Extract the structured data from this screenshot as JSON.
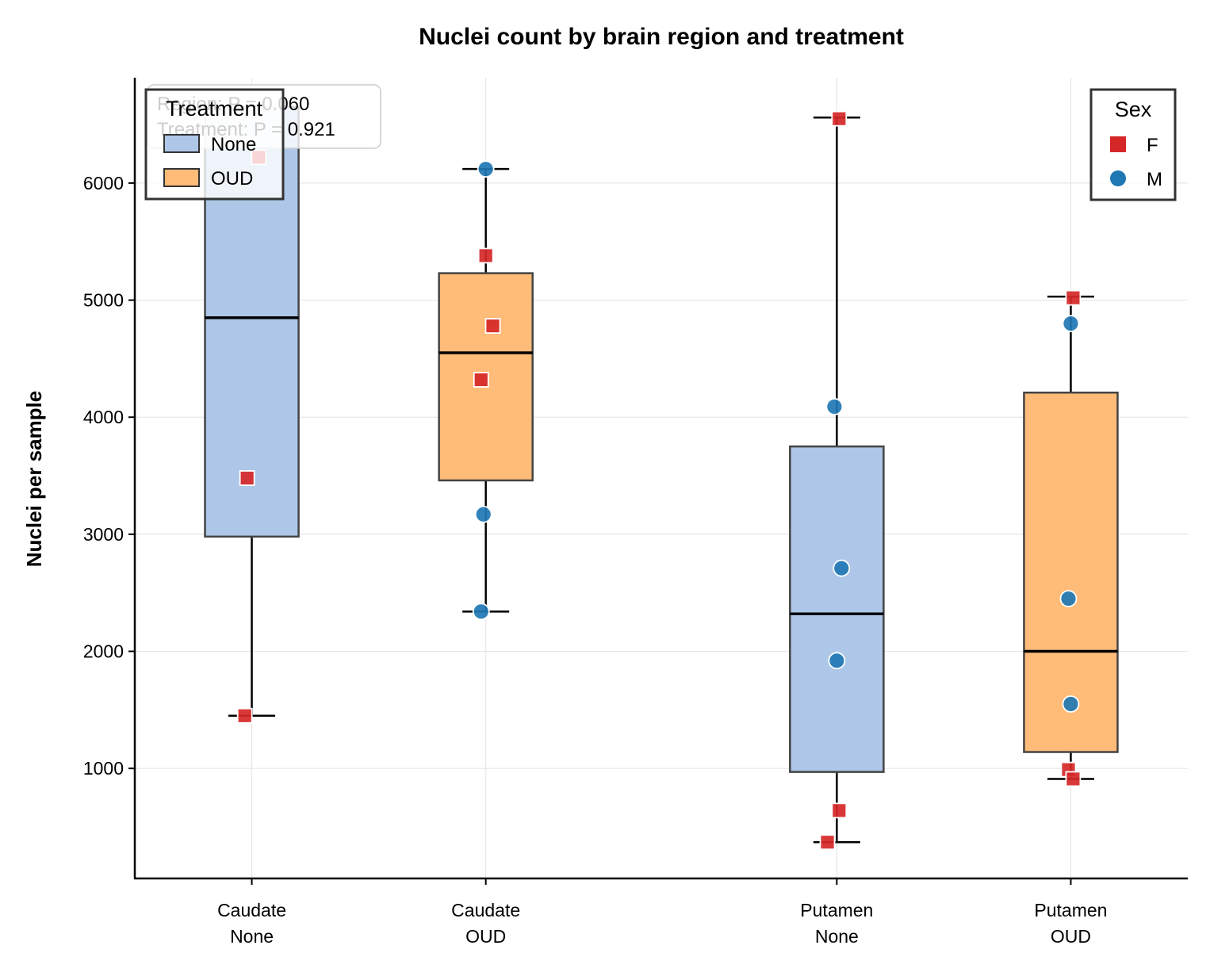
{
  "chart_data": {
    "type": "box",
    "title": "Nuclei count by brain region and treatment",
    "ylabel": "Nuclei per sample",
    "xlabel": "",
    "ylim": [
      60,
      6900
    ],
    "yticks": [
      1000,
      2000,
      3000,
      4000,
      5000,
      6000
    ],
    "grid": true,
    "categories": [
      {
        "label_line1": "Caudate",
        "label_line2": "None",
        "region": "Caudate",
        "treatment": "None",
        "x": 1.0
      },
      {
        "label_line1": "Caudate",
        "label_line2": "OUD",
        "region": "Caudate",
        "treatment": "OUD",
        "x": 2.0
      },
      {
        "label_line1": "Putamen",
        "label_line2": "None",
        "region": "Putamen",
        "treatment": "None",
        "x": 3.5
      },
      {
        "label_line1": "Putamen",
        "label_line2": "OUD",
        "region": "Putamen",
        "treatment": "OUD",
        "x": 4.5
      }
    ],
    "xlim": [
      0.5,
      5.0
    ],
    "boxes": [
      {
        "category": "Caudate None",
        "treatment": "None",
        "whisker_low": 1450,
        "q1": 2980,
        "median": 4850,
        "q3": 6650,
        "whisker_high": 6650
      },
      {
        "category": "Caudate OUD",
        "treatment": "OUD",
        "whisker_low": 2340,
        "q1": 3460,
        "median": 4550,
        "q3": 5230,
        "whisker_high": 6120
      },
      {
        "category": "Putamen None",
        "treatment": "None",
        "whisker_low": 370,
        "q1": 970,
        "median": 2320,
        "q3": 3750,
        "whisker_high": 6560
      },
      {
        "category": "Putamen OUD",
        "treatment": "OUD",
        "whisker_low": 910,
        "q1": 1140,
        "median": 2000,
        "q3": 4210,
        "whisker_high": 5030
      }
    ],
    "points": [
      {
        "category": "Caudate None",
        "x": 1.03,
        "y": 6220,
        "sex": "F"
      },
      {
        "category": "Caudate None",
        "x": 0.98,
        "y": 3480,
        "sex": "F"
      },
      {
        "category": "Caudate None",
        "x": 0.97,
        "y": 1450,
        "sex": "F"
      },
      {
        "category": "Caudate OUD",
        "x": 2.0,
        "y": 6120,
        "sex": "M"
      },
      {
        "category": "Caudate OUD",
        "x": 2.0,
        "y": 5380,
        "sex": "F"
      },
      {
        "category": "Caudate OUD",
        "x": 2.03,
        "y": 4780,
        "sex": "F"
      },
      {
        "category": "Caudate OUD",
        "x": 1.98,
        "y": 4320,
        "sex": "F"
      },
      {
        "category": "Caudate OUD",
        "x": 1.99,
        "y": 3170,
        "sex": "M"
      },
      {
        "category": "Caudate OUD",
        "x": 1.98,
        "y": 2340,
        "sex": "M"
      },
      {
        "category": "Putamen None",
        "x": 3.51,
        "y": 6550,
        "sex": "F"
      },
      {
        "category": "Putamen None",
        "x": 3.49,
        "y": 4090,
        "sex": "M"
      },
      {
        "category": "Putamen None",
        "x": 3.52,
        "y": 2710,
        "sex": "M"
      },
      {
        "category": "Putamen None",
        "x": 3.5,
        "y": 1920,
        "sex": "M"
      },
      {
        "category": "Putamen None",
        "x": 3.51,
        "y": 640,
        "sex": "F"
      },
      {
        "category": "Putamen None",
        "x": 3.46,
        "y": 370,
        "sex": "F"
      },
      {
        "category": "Putamen OUD",
        "x": 4.51,
        "y": 5020,
        "sex": "F"
      },
      {
        "category": "Putamen OUD",
        "x": 4.5,
        "y": 4800,
        "sex": "M"
      },
      {
        "category": "Putamen OUD",
        "x": 4.49,
        "y": 2450,
        "sex": "M"
      },
      {
        "category": "Putamen OUD",
        "x": 4.5,
        "y": 1550,
        "sex": "M"
      },
      {
        "category": "Putamen OUD",
        "x": 4.49,
        "y": 990,
        "sex": "F"
      },
      {
        "category": "Putamen OUD",
        "x": 4.51,
        "y": 910,
        "sex": "F"
      }
    ],
    "colors": {
      "None": "#aec7e8",
      "OUD": "#ffbb78",
      "F": "#d62728",
      "M": "#1f77b4"
    },
    "treatment_legend": {
      "title": "Treatment",
      "placement": "top-left",
      "items": [
        {
          "label": "None",
          "key": "None"
        },
        {
          "label": "OUD",
          "key": "OUD"
        }
      ]
    },
    "sex_legend": {
      "title": "Sex",
      "placement": "top-right",
      "items": [
        {
          "label": "F",
          "key": "F",
          "marker": "square"
        },
        {
          "label": "M",
          "key": "M",
          "marker": "circle"
        }
      ]
    },
    "annotations": [
      "Region: P = 0.060",
      "Treatment: P = 0.921"
    ]
  }
}
